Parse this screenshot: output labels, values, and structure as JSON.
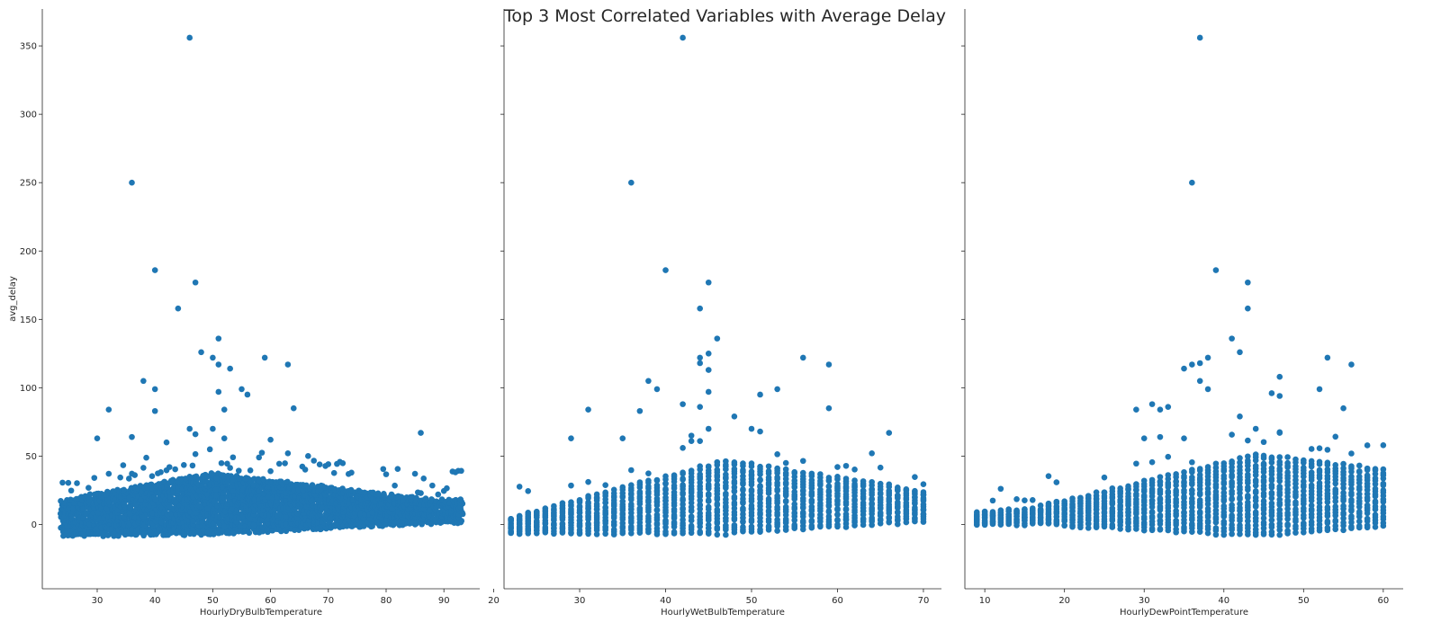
{
  "chart_data": {
    "type": "scatter",
    "title": "Top 3 Most Correlated Variables with Average Delay",
    "ylabel": "avg_delay",
    "ylim": [
      -47,
      377
    ],
    "yticks": [
      0,
      50,
      100,
      150,
      200,
      250,
      300,
      350
    ],
    "marker_color": "#1f77b4",
    "panels": [
      {
        "xlabel": "HourlyDryBulbTemperature",
        "xlim": [
          20.5,
          96.2
        ],
        "xticks": [
          30,
          40,
          50,
          60,
          70,
          80,
          90
        ],
        "band": {
          "xmin": 24,
          "xmax": 93,
          "lo_start": -7,
          "lo_end": 2,
          "hi_start": 10,
          "hi_end": 18,
          "peak_x": 50,
          "peak_hi": 34,
          "peak_lo": -12,
          "step": 0.5
        },
        "outliers": [
          [
            46,
            356
          ],
          [
            36,
            250
          ],
          [
            40,
            186
          ],
          [
            47,
            177
          ],
          [
            44,
            158
          ],
          [
            51,
            136
          ],
          [
            50,
            122
          ],
          [
            51,
            117
          ],
          [
            53,
            114
          ],
          [
            59,
            122
          ],
          [
            63,
            117
          ],
          [
            48,
            126
          ],
          [
            38,
            105
          ],
          [
            40,
            99
          ],
          [
            51,
            97
          ],
          [
            55,
            99
          ],
          [
            56,
            95
          ],
          [
            52,
            84
          ],
          [
            32,
            84
          ],
          [
            40,
            83
          ],
          [
            64,
            85
          ],
          [
            46,
            70
          ],
          [
            50,
            70
          ],
          [
            36,
            64
          ],
          [
            30,
            63
          ],
          [
            47,
            66
          ],
          [
            60,
            62
          ],
          [
            86,
            67
          ],
          [
            42,
            60
          ],
          [
            52,
            63
          ]
        ]
      },
      {
        "xlabel": "HourlyWetBulbTemperature",
        "xlim": [
          21.2,
          72.1
        ],
        "xticks": [
          20,
          30,
          40,
          50,
          60,
          70
        ],
        "band": {
          "xmin": 22,
          "xmax": 70,
          "lo_start": -6,
          "lo_end": 3,
          "hi_start": 3,
          "hi_end": 20,
          "peak_x": 47,
          "peak_hi": 38,
          "peak_lo": -15,
          "step": 1
        },
        "outliers": [
          [
            42,
            356
          ],
          [
            36,
            250
          ],
          [
            40,
            186
          ],
          [
            45,
            177
          ],
          [
            44,
            158
          ],
          [
            46,
            136
          ],
          [
            44,
            122
          ],
          [
            45,
            125
          ],
          [
            44,
            118
          ],
          [
            45,
            113
          ],
          [
            56,
            122
          ],
          [
            59,
            117
          ],
          [
            38,
            105
          ],
          [
            39,
            99
          ],
          [
            45,
            97
          ],
          [
            51,
            95
          ],
          [
            53,
            99
          ],
          [
            42,
            88
          ],
          [
            44,
            86
          ],
          [
            59,
            85
          ],
          [
            31,
            84
          ],
          [
            37,
            83
          ],
          [
            48,
            79
          ],
          [
            45,
            70
          ],
          [
            50,
            70
          ],
          [
            43,
            65
          ],
          [
            35,
            63
          ],
          [
            29,
            63
          ],
          [
            66,
            67
          ],
          [
            51,
            68
          ]
        ]
      },
      {
        "xlabel": "HourlyDewPointTemperature",
        "xlim": [
          7.5,
          62.5
        ],
        "xticks": [
          10,
          20,
          30,
          40,
          50,
          60
        ],
        "band": {
          "xmin": 9,
          "xmax": 60,
          "lo_start": 0,
          "lo_end": 3,
          "hi_start": 9,
          "hi_end": 28,
          "peak_x": 44,
          "peak_hi": 38,
          "peak_lo": -17,
          "step": 1
        },
        "outliers": [
          [
            37,
            356
          ],
          [
            36,
            250
          ],
          [
            39,
            186
          ],
          [
            43,
            177
          ],
          [
            43,
            158
          ],
          [
            41,
            136
          ],
          [
            42,
            126
          ],
          [
            53,
            122
          ],
          [
            37,
            118
          ],
          [
            38,
            122
          ],
          [
            36,
            117
          ],
          [
            35,
            114
          ],
          [
            56,
            117
          ],
          [
            47,
            108
          ],
          [
            37,
            105
          ],
          [
            38,
            99
          ],
          [
            52,
            99
          ],
          [
            46,
            96
          ],
          [
            47,
            94
          ],
          [
            55,
            85
          ],
          [
            31,
            88
          ],
          [
            32,
            84
          ],
          [
            29,
            84
          ],
          [
            33,
            86
          ],
          [
            42,
            79
          ],
          [
            47,
            67
          ],
          [
            44,
            70
          ],
          [
            35,
            63
          ],
          [
            32,
            64
          ],
          [
            30,
            63
          ]
        ]
      }
    ]
  }
}
